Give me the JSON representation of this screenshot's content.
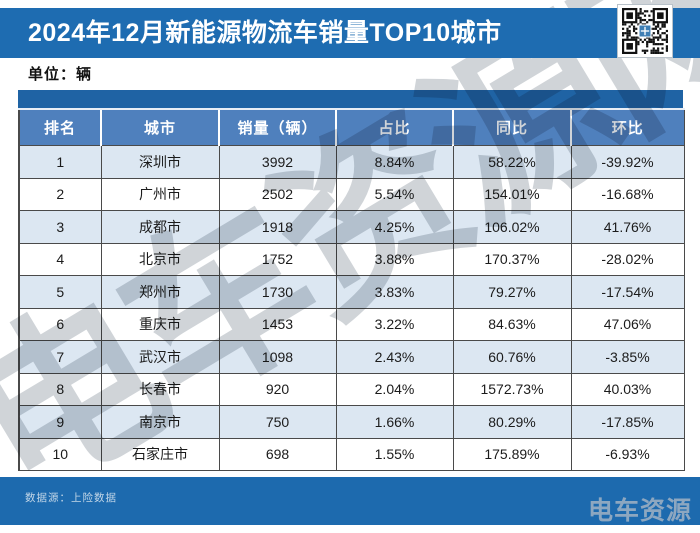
{
  "header": {
    "title": "2024年12月新能源物流车销量TOP10城市"
  },
  "unit_label": "单位：辆",
  "chart_data": {
    "type": "table",
    "title": "2024年12月新能源物流车销量TOP10城市",
    "unit": "辆",
    "columns": [
      "排名",
      "城市",
      "销量（辆）",
      "占比",
      "同比",
      "环比"
    ],
    "rows": [
      [
        "1",
        "深圳市",
        "3992",
        "8.84%",
        "58.22%",
        "-39.92%"
      ],
      [
        "2",
        "广州市",
        "2502",
        "5.54%",
        "154.01%",
        "-16.68%"
      ],
      [
        "3",
        "成都市",
        "1918",
        "4.25%",
        "106.02%",
        "41.76%"
      ],
      [
        "4",
        "北京市",
        "1752",
        "3.88%",
        "170.37%",
        "-28.02%"
      ],
      [
        "5",
        "郑州市",
        "1730",
        "3.83%",
        "79.27%",
        "-17.54%"
      ],
      [
        "6",
        "重庆市",
        "1453",
        "3.22%",
        "84.63%",
        "47.06%"
      ],
      [
        "7",
        "武汉市",
        "1098",
        "2.43%",
        "60.76%",
        "-3.85%"
      ],
      [
        "8",
        "长春市",
        "920",
        "2.04%",
        "1572.73%",
        "40.03%"
      ],
      [
        "9",
        "南京市",
        "750",
        "1.66%",
        "80.29%",
        "-17.85%"
      ],
      [
        "10",
        "石家庄市",
        "698",
        "1.55%",
        "175.89%",
        "-6.93%"
      ]
    ]
  },
  "watermark_text": "电车资源网",
  "footer": {
    "source": "数据源：上险数据",
    "logo": "电车资源"
  },
  "colors": {
    "accent_blue": "#1e6cb1",
    "table_strip_blue": "#1f63a4",
    "header_row_blue": "#4f80bd",
    "row_alt_blue": "#dce7f2",
    "border_dark": "#4a4a4a",
    "footer_blue": "#1d6aae"
  }
}
